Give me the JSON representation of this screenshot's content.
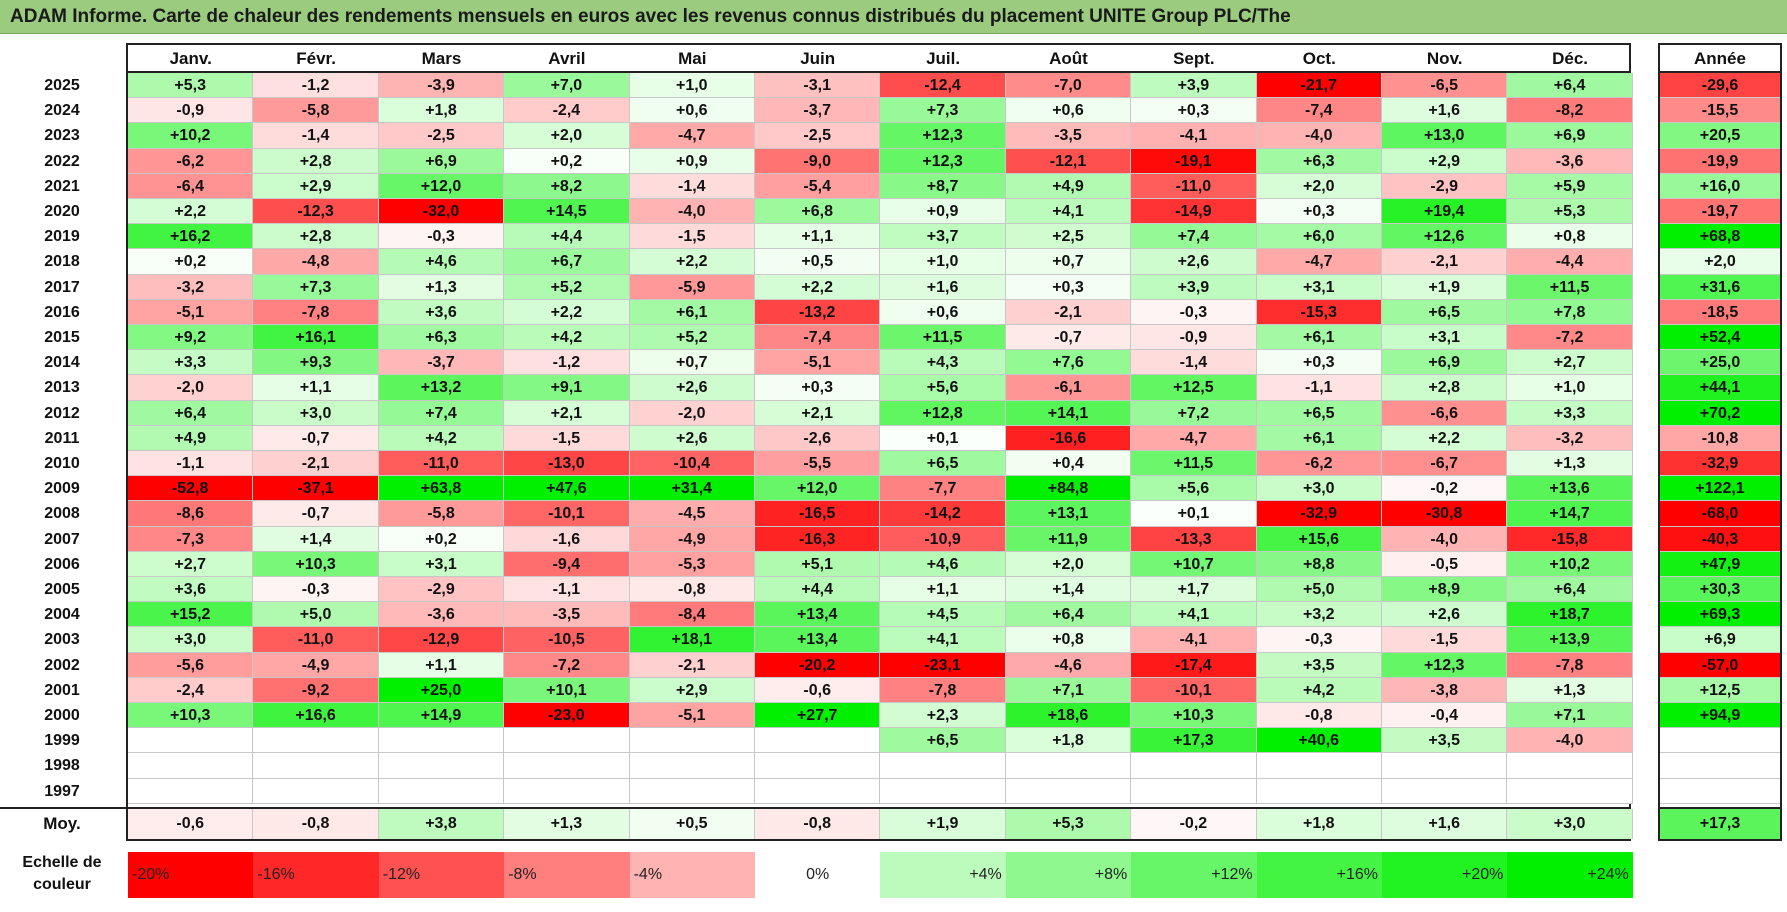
{
  "title": "ADAM Informe. Carte de chaleur des rendements mensuels en euros avec les revenus connus distribués du placement UNITE Group PLC/The",
  "chart_data": {
    "type": "heatmap",
    "months": [
      "Janv.",
      "Févr.",
      "Mars",
      "Avril",
      "Mai",
      "Juin",
      "Juil.",
      "Août",
      "Sept.",
      "Oct.",
      "Nov.",
      "Déc."
    ],
    "year_header": "Année",
    "rows": [
      {
        "year": "2025",
        "values": [
          "+5,3",
          "-1,2",
          "-3,9",
          "+7,0",
          "+1,0",
          "-3,1",
          "-12,4",
          "-7,0",
          "+3,9",
          "-21,7",
          "-6,5",
          "+6,4"
        ],
        "annual": "-29,6"
      },
      {
        "year": "2024",
        "values": [
          "-0,9",
          "-5,8",
          "+1,8",
          "-2,4",
          "+0,6",
          "-3,7",
          "+7,3",
          "+0,6",
          "+0,3",
          "-7,4",
          "+1,6",
          "-8,2"
        ],
        "annual": "-15,5"
      },
      {
        "year": "2023",
        "values": [
          "+10,2",
          "-1,4",
          "-2,5",
          "+2,0",
          "-4,7",
          "-2,5",
          "+12,3",
          "-3,5",
          "-4,1",
          "-4,0",
          "+13,0",
          "+6,9"
        ],
        "annual": "+20,5"
      },
      {
        "year": "2022",
        "values": [
          "-6,2",
          "+2,8",
          "+6,9",
          "+0,2",
          "+0,9",
          "-9,0",
          "+12,3",
          "-12,1",
          "-19,1",
          "+6,3",
          "+2,9",
          "-3,6"
        ],
        "annual": "-19,9"
      },
      {
        "year": "2021",
        "values": [
          "-6,4",
          "+2,9",
          "+12,0",
          "+8,2",
          "-1,4",
          "-5,4",
          "+8,7",
          "+4,9",
          "-11,0",
          "+2,0",
          "-2,9",
          "+5,9"
        ],
        "annual": "+16,0"
      },
      {
        "year": "2020",
        "values": [
          "+2,2",
          "-12,3",
          "-32,0",
          "+14,5",
          "-4,0",
          "+6,8",
          "+0,9",
          "+4,1",
          "-14,9",
          "+0,3",
          "+19,4",
          "+5,3"
        ],
        "annual": "-19,7"
      },
      {
        "year": "2019",
        "values": [
          "+16,2",
          "+2,8",
          "-0,3",
          "+4,4",
          "-1,5",
          "+1,1",
          "+3,7",
          "+2,5",
          "+7,4",
          "+6,0",
          "+12,6",
          "+0,8"
        ],
        "annual": "+68,8"
      },
      {
        "year": "2018",
        "values": [
          "+0,2",
          "-4,8",
          "+4,6",
          "+6,7",
          "+2,2",
          "+0,5",
          "+1,0",
          "+0,7",
          "+2,6",
          "-4,7",
          "-2,1",
          "-4,4"
        ],
        "annual": "+2,0"
      },
      {
        "year": "2017",
        "values": [
          "-3,2",
          "+7,3",
          "+1,3",
          "+5,2",
          "-5,9",
          "+2,2",
          "+1,6",
          "+0,3",
          "+3,9",
          "+3,1",
          "+1,9",
          "+11,5"
        ],
        "annual": "+31,6"
      },
      {
        "year": "2016",
        "values": [
          "-5,1",
          "-7,8",
          "+3,6",
          "+2,2",
          "+6,1",
          "-13,2",
          "+0,6",
          "-2,1",
          "-0,3",
          "-15,3",
          "+6,5",
          "+7,8"
        ],
        "annual": "-18,5"
      },
      {
        "year": "2015",
        "values": [
          "+9,2",
          "+16,1",
          "+6,3",
          "+4,2",
          "+5,2",
          "-7,4",
          "+11,5",
          "-0,7",
          "-0,9",
          "+6,1",
          "+3,1",
          "-7,2"
        ],
        "annual": "+52,4"
      },
      {
        "year": "2014",
        "values": [
          "+3,3",
          "+9,3",
          "-3,7",
          "-1,2",
          "+0,7",
          "-5,1",
          "+4,3",
          "+7,6",
          "-1,4",
          "+0,3",
          "+6,9",
          "+2,7"
        ],
        "annual": "+25,0"
      },
      {
        "year": "2013",
        "values": [
          "-2,0",
          "+1,1",
          "+13,2",
          "+9,1",
          "+2,6",
          "+0,3",
          "+5,6",
          "-6,1",
          "+12,5",
          "-1,1",
          "+2,8",
          "+1,0"
        ],
        "annual": "+44,1"
      },
      {
        "year": "2012",
        "values": [
          "+6,4",
          "+3,0",
          "+7,4",
          "+2,1",
          "-2,0",
          "+2,1",
          "+12,8",
          "+14,1",
          "+7,2",
          "+6,5",
          "-6,6",
          "+3,3"
        ],
        "annual": "+70,2"
      },
      {
        "year": "2011",
        "values": [
          "+4,9",
          "-0,7",
          "+4,2",
          "-1,5",
          "+2,6",
          "-2,6",
          "+0,1",
          "-16,6",
          "-4,7",
          "+6,1",
          "+2,2",
          "-3,2"
        ],
        "annual": "-10,8"
      },
      {
        "year": "2010",
        "values": [
          "-1,1",
          "-2,1",
          "-11,0",
          "-13,0",
          "-10,4",
          "-5,5",
          "+6,5",
          "+0,4",
          "+11,5",
          "-6,2",
          "-6,7",
          "+1,3"
        ],
        "annual": "-32,9"
      },
      {
        "year": "2009",
        "values": [
          "-52,8",
          "-37,1",
          "+63,8",
          "+47,6",
          "+31,4",
          "+12,0",
          "-7,7",
          "+84,8",
          "+5,6",
          "+3,0",
          "-0,2",
          "+13,6"
        ],
        "annual": "+122,1"
      },
      {
        "year": "2008",
        "values": [
          "-8,6",
          "-0,7",
          "-5,8",
          "-10,1",
          "-4,5",
          "-16,5",
          "-14,2",
          "+13,1",
          "+0,1",
          "-32,9",
          "-30,8",
          "+14,7"
        ],
        "annual": "-68,0"
      },
      {
        "year": "2007",
        "values": [
          "-7,3",
          "+1,4",
          "+0,2",
          "-1,6",
          "-4,9",
          "-16,3",
          "-10,9",
          "+11,9",
          "-13,3",
          "+15,6",
          "-4,0",
          "-15,8"
        ],
        "annual": "-40,3"
      },
      {
        "year": "2006",
        "values": [
          "+2,7",
          "+10,3",
          "+3,1",
          "-9,4",
          "-5,3",
          "+5,1",
          "+4,6",
          "+2,0",
          "+10,7",
          "+8,8",
          "-0,5",
          "+10,2"
        ],
        "annual": "+47,9"
      },
      {
        "year": "2005",
        "values": [
          "+3,6",
          "-0,3",
          "-2,9",
          "-1,1",
          "-0,8",
          "+4,4",
          "+1,1",
          "+1,4",
          "+1,7",
          "+5,0",
          "+8,9",
          "+6,4"
        ],
        "annual": "+30,3"
      },
      {
        "year": "2004",
        "values": [
          "+15,2",
          "+5,0",
          "-3,6",
          "-3,5",
          "-8,4",
          "+13,4",
          "+4,5",
          "+6,4",
          "+4,1",
          "+3,2",
          "+2,6",
          "+18,7"
        ],
        "annual": "+69,3"
      },
      {
        "year": "2003",
        "values": [
          "+3,0",
          "-11,0",
          "-12,9",
          "-10,5",
          "+18,1",
          "+13,4",
          "+4,1",
          "+0,8",
          "-4,1",
          "-0,3",
          "-1,5",
          "+13,9"
        ],
        "annual": "+6,9"
      },
      {
        "year": "2002",
        "values": [
          "-5,6",
          "-4,9",
          "+1,1",
          "-7,2",
          "-2,1",
          "-20,2",
          "-23,1",
          "-4,6",
          "-17,4",
          "+3,5",
          "+12,3",
          "-7,8"
        ],
        "annual": "-57,0"
      },
      {
        "year": "2001",
        "values": [
          "-2,4",
          "-9,2",
          "+25,0",
          "+10,1",
          "+2,9",
          "-0,6",
          "-7,8",
          "+7,1",
          "-10,1",
          "+4,2",
          "-3,8",
          "+1,3"
        ],
        "annual": "+12,5"
      },
      {
        "year": "2000",
        "values": [
          "+10,3",
          "+16,6",
          "+14,9",
          "-23,0",
          "-5,1",
          "+27,7",
          "+2,3",
          "+18,6",
          "+10,3",
          "-0,8",
          "-0,4",
          "+7,1"
        ],
        "annual": "+94,9"
      },
      {
        "year": "1999",
        "values": [
          "",
          "",
          "",
          "",
          "",
          "",
          "+6,5",
          "+1,8",
          "+17,3",
          "+40,6",
          "+3,5",
          "-4,0"
        ],
        "annual": ""
      },
      {
        "year": "1998",
        "values": [
          "",
          "",
          "",
          "",
          "",
          "",
          "",
          "",
          "",
          "",
          "",
          ""
        ],
        "annual": ""
      },
      {
        "year": "1997",
        "values": [
          "",
          "",
          "",
          "",
          "",
          "",
          "",
          "",
          "",
          "",
          "",
          ""
        ],
        "annual": ""
      }
    ],
    "average": {
      "label": "Moy.",
      "values": [
        "-0,6",
        "-0,8",
        "+3,8",
        "+1,3",
        "+0,5",
        "-0,8",
        "+1,9",
        "+5,3",
        "-0,2",
        "+1,8",
        "+1,6",
        "+3,0"
      ],
      "annual": "+17,3"
    },
    "color_scale": {
      "label": "Echelle de couleur",
      "stops": [
        "-20%",
        "-16%",
        "-12%",
        "-8%",
        "-4%",
        "0%",
        "+4%",
        "+8%",
        "+12%",
        "+16%",
        "+20%",
        "+24%"
      ],
      "stop_values": [
        -20,
        -16,
        -12,
        -8,
        -4,
        0,
        4,
        8,
        12,
        16,
        20,
        24
      ]
    },
    "colors": {
      "neg_max": "#ff0000",
      "pos_max": "#00f000",
      "neutral": "#ffffff"
    }
  }
}
